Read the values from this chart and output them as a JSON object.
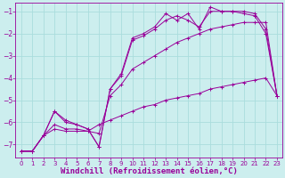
{
  "background_color": "#cceeee",
  "grid_color": "#aadddd",
  "line_color": "#990099",
  "xlabel": "Windchill (Refroidissement éolien,°C)",
  "xlabel_color": "#990099",
  "xlabel_fontsize": 6.5,
  "ytick_labels": [
    "-7",
    "-6",
    "-5",
    "-4",
    "-3",
    "-2",
    "-1"
  ],
  "yticks": [
    -7,
    -6,
    -5,
    -4,
    -3,
    -2,
    -1
  ],
  "xticks": [
    0,
    1,
    2,
    3,
    4,
    5,
    6,
    7,
    8,
    9,
    10,
    11,
    12,
    13,
    14,
    15,
    16,
    17,
    18,
    19,
    20,
    21,
    22,
    23
  ],
  "ylim": [
    -7.6,
    -0.6
  ],
  "xlim": [
    -0.5,
    23.5
  ],
  "series": [
    {
      "x": [
        0,
        1,
        2,
        3,
        4,
        5,
        6,
        7,
        8,
        9,
        10,
        11,
        12,
        13,
        14,
        15,
        16,
        17,
        18,
        19,
        20,
        21,
        22,
        23
      ],
      "y": [
        -7.3,
        -7.3,
        -6.6,
        -6.3,
        -6.4,
        -6.4,
        -6.4,
        -6.1,
        -5.9,
        -5.7,
        -5.5,
        -5.3,
        -5.2,
        -5.0,
        -4.9,
        -4.8,
        -4.7,
        -4.5,
        -4.4,
        -4.3,
        -4.2,
        -4.1,
        -4.0,
        -4.8
      ]
    },
    {
      "x": [
        0,
        1,
        2,
        3,
        4,
        5,
        6,
        7,
        8,
        9,
        10,
        11,
        12,
        13,
        14,
        15,
        16,
        17,
        18,
        19,
        20,
        21,
        22,
        23
      ],
      "y": [
        -7.3,
        -7.3,
        -6.6,
        -6.1,
        -6.3,
        -6.3,
        -6.4,
        -6.5,
        -4.8,
        -4.3,
        -3.6,
        -3.3,
        -3.0,
        -2.7,
        -2.4,
        -2.2,
        -2.0,
        -1.8,
        -1.7,
        -1.6,
        -1.5,
        -1.5,
        -1.5,
        -4.8
      ]
    },
    {
      "x": [
        0,
        1,
        2,
        3,
        4,
        5,
        6,
        7,
        8,
        9,
        10,
        11,
        12,
        13,
        14,
        15,
        16,
        17,
        18,
        19,
        20,
        21,
        22,
        23
      ],
      "y": [
        -7.3,
        -7.3,
        -6.6,
        -5.5,
        -5.9,
        -6.1,
        -6.3,
        -7.1,
        -4.5,
        -3.9,
        -2.3,
        -2.1,
        -1.8,
        -1.4,
        -1.2,
        -1.4,
        -1.7,
        -1.0,
        -1.0,
        -1.0,
        -1.1,
        -1.2,
        -2.0,
        -4.8
      ]
    },
    {
      "x": [
        0,
        1,
        2,
        3,
        4,
        5,
        6,
        7,
        8,
        9,
        10,
        11,
        12,
        13,
        14,
        15,
        16,
        17,
        18,
        19,
        20,
        21,
        22,
        23
      ],
      "y": [
        -7.3,
        -7.3,
        -6.6,
        -5.5,
        -6.0,
        -6.1,
        -6.3,
        -7.1,
        -4.5,
        -3.8,
        -2.2,
        -2.0,
        -1.7,
        -1.1,
        -1.4,
        -1.1,
        -1.8,
        -0.8,
        -1.0,
        -1.0,
        -1.0,
        -1.1,
        -1.8,
        -4.8
      ]
    }
  ]
}
